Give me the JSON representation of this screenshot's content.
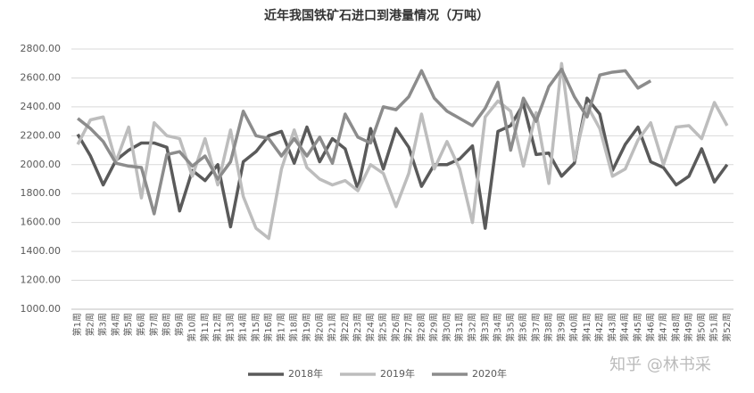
{
  "chart_data": {
    "type": "line",
    "title": "近年我国铁矿石进口到港量情况（万吨）",
    "watermark": "知乎 @林书采",
    "categories": [
      "第1周",
      "第2周",
      "第3周",
      "第4周",
      "第5周",
      "第6周",
      "第7周",
      "第8周",
      "第9周",
      "第10周",
      "第11周",
      "第12周",
      "第13周",
      "第14周",
      "第15周",
      "第16周",
      "第17周",
      "第18周",
      "第19周",
      "第20周",
      "第21周",
      "第22周",
      "第23周",
      "第24周",
      "第25周",
      "第26周",
      "第27周",
      "第28周",
      "第29周",
      "第30周",
      "第31周",
      "第32周",
      "第33周",
      "第34周",
      "第35周",
      "第36周",
      "第37周",
      "第38周",
      "第39周",
      "第40周",
      "第41周",
      "第42周",
      "第43周",
      "第44周",
      "第45周",
      "第46周",
      "第47周",
      "第48周",
      "第49周",
      "第50周",
      "第51周",
      "第52周"
    ],
    "series": [
      {
        "name": "2018年",
        "color": "#5a5a5a",
        "values": [
          2210,
          2060,
          1860,
          2030,
          2100,
          2150,
          2150,
          2120,
          1680,
          1960,
          1890,
          2000,
          1570,
          2020,
          2090,
          2200,
          2230,
          2010,
          2260,
          2020,
          2180,
          2110,
          1830,
          2250,
          1970,
          2250,
          2120,
          1850,
          2000,
          2000,
          2040,
          2130,
          1560,
          2230,
          2270,
          2420,
          2070,
          2080,
          1920,
          2010,
          2460,
          2350,
          1960,
          2140,
          2260,
          2020,
          1980,
          1860,
          1920,
          2110,
          1880,
          2000
        ]
      },
      {
        "name": "2019年",
        "color": "#bdbdbd",
        "values": [
          2140,
          2310,
          2330,
          2020,
          2260,
          1770,
          2290,
          2200,
          2180,
          1920,
          2180,
          1860,
          2240,
          1780,
          1560,
          1490,
          1970,
          2240,
          1980,
          1900,
          1860,
          1890,
          1820,
          2000,
          1940,
          1710,
          1940,
          2350,
          1970,
          2160,
          1970,
          1600,
          2330,
          2440,
          2370,
          1990,
          2360,
          1870,
          2700,
          2030,
          2410,
          2250,
          1920,
          1970,
          2170,
          2290,
          2000,
          2260,
          2270,
          2180,
          2430,
          2270
        ]
      },
      {
        "name": "2020年",
        "color": "#8c8c8c",
        "values": [
          2320,
          2250,
          2160,
          2010,
          1990,
          1980,
          1660,
          2070,
          2090,
          1990,
          2060,
          1900,
          2020,
          2370,
          2200,
          2180,
          2060,
          2180,
          2060,
          2190,
          2010,
          2350,
          2190,
          2150,
          2400,
          2380,
          2470,
          2650,
          2460,
          2370,
          2320,
          2270,
          2390,
          2570,
          2100,
          2460,
          2300,
          2540,
          2660,
          2470,
          2330,
          2620,
          2640,
          2650,
          2530,
          2580,
          null,
          null,
          null,
          null,
          null,
          null
        ]
      }
    ],
    "ylim": [
      1000,
      2800
    ],
    "yticks": [
      {
        "value": 1000,
        "label": "1000.00"
      },
      {
        "value": 1200,
        "label": "1200.00"
      },
      {
        "value": 1400,
        "label": "1400.00"
      },
      {
        "value": 1600,
        "label": "1600.00"
      },
      {
        "value": 1800,
        "label": "1800.00"
      },
      {
        "value": 2000,
        "label": "2000.00"
      },
      {
        "value": 2200,
        "label": "2200.00"
      },
      {
        "value": 2400,
        "label": "2400.00"
      },
      {
        "value": 2600,
        "label": "2600.00"
      },
      {
        "value": 2800,
        "label": "2800.00"
      }
    ],
    "legend": "bottom"
  }
}
